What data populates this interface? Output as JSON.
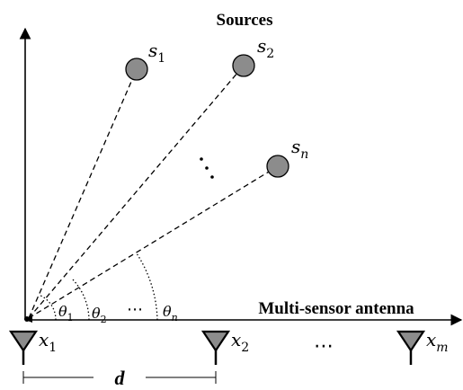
{
  "title": "Sources",
  "antenna_label": "Multi-sensor antenna",
  "sources": [
    {
      "base": "s",
      "sub": "1"
    },
    {
      "base": "s",
      "sub": "2"
    },
    {
      "base": "s",
      "sub": "n"
    }
  ],
  "angles": [
    {
      "base": "θ",
      "sub": "1"
    },
    {
      "base": "θ",
      "sub": "2"
    },
    {
      "base": "θ",
      "sub": "n"
    }
  ],
  "sensors": [
    {
      "base": "x",
      "sub": "1"
    },
    {
      "base": "x",
      "sub": "2"
    },
    {
      "base": "x",
      "sub": "m"
    }
  ],
  "spacing_label": "d",
  "ellipsis": "⋯",
  "colors": {
    "source_fill": "#8c8c8c",
    "sensor_fill": "#8c8c8c",
    "stroke": "#000000"
  }
}
